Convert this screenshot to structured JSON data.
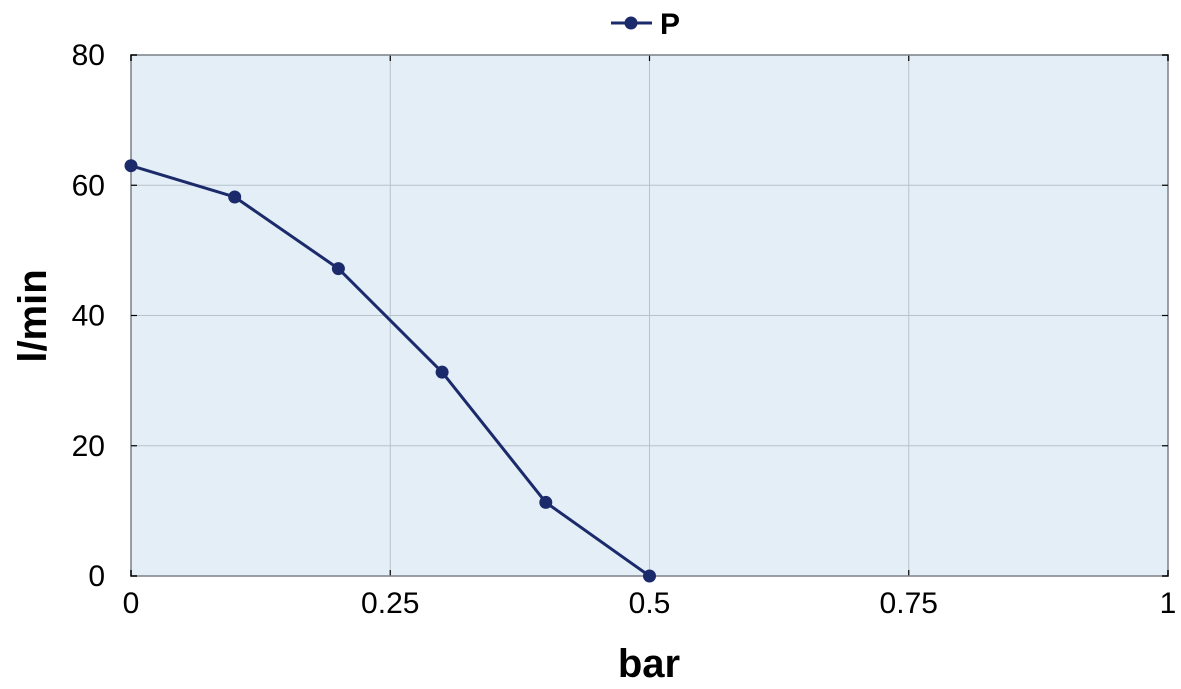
{
  "chart_data": {
    "type": "line",
    "title": "",
    "xlabel": "bar",
    "ylabel": "l/min",
    "xlim": [
      0,
      1
    ],
    "ylim": [
      0,
      80
    ],
    "x_ticks": [
      "0",
      "0.25",
      "0.5",
      "0.75",
      "1"
    ],
    "y_ticks": [
      "0",
      "20",
      "40",
      "60",
      "80"
    ],
    "grid": true,
    "legend_position": "top-center",
    "plot_background": "#e3eef6",
    "series": [
      {
        "name": "P",
        "color": "#1b2a6b",
        "marker": "circle",
        "x": [
          0,
          0.1,
          0.2,
          0.3,
          0.4,
          0.5
        ],
        "y": [
          63,
          58.2,
          47.2,
          31.3,
          11.3,
          0
        ]
      }
    ]
  }
}
